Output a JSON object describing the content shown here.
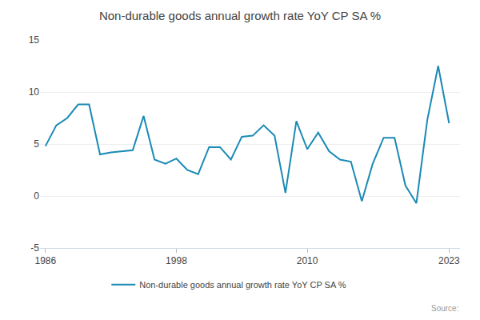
{
  "chart_data": {
    "type": "line",
    "title": "Non-durable goods annual growth rate YoY CP SA %",
    "x": [
      1986,
      1987,
      1988,
      1989,
      1990,
      1991,
      1992,
      1993,
      1994,
      1995,
      1996,
      1997,
      1998,
      1999,
      2000,
      2001,
      2002,
      2003,
      2004,
      2005,
      2006,
      2007,
      2008,
      2009,
      2010,
      2011,
      2012,
      2013,
      2014,
      2015,
      2016,
      2017,
      2018,
      2019,
      2020,
      2021,
      2022,
      2023
    ],
    "series": [
      {
        "name": "Non-durable goods annual growth rate YoY CP SA %",
        "color": "#1a8ab5",
        "values": [
          4.8,
          6.8,
          7.5,
          8.8,
          8.8,
          4.0,
          4.2,
          4.3,
          4.4,
          7.7,
          3.5,
          3.1,
          3.6,
          2.5,
          2.1,
          4.7,
          4.7,
          3.5,
          5.7,
          5.8,
          6.8,
          5.8,
          0.3,
          7.2,
          4.5,
          6.1,
          4.3,
          3.5,
          3.3,
          -0.5,
          3.1,
          5.6,
          5.6,
          1.0,
          -0.7,
          7.3,
          12.5,
          7.0
        ]
      }
    ],
    "xlim": [
      1985.5,
      2024.0
    ],
    "xticks": [
      1986,
      1998,
      2010,
      2023
    ],
    "ylim": [
      -5,
      15
    ],
    "yticks": [
      -5,
      0,
      5,
      10,
      15
    ],
    "grid": true,
    "legend": "bottom",
    "annotations": [
      "Source:"
    ]
  }
}
